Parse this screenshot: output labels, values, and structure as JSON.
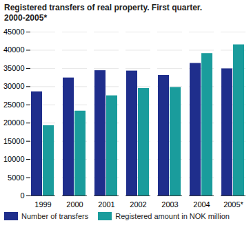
{
  "chart_data": {
    "type": "bar",
    "title": "Registered transfers of real property.  First quarter. 2000-2005*",
    "categories": [
      "1999",
      "2000",
      "2001",
      "2002",
      "2003",
      "2004",
      "2005*"
    ],
    "series": [
      {
        "name": "Number of transfers",
        "color": "#1f2e8c",
        "values": [
          28600,
          32400,
          34400,
          34300,
          33100,
          36400,
          34900
        ]
      },
      {
        "name": "Registered amount in NOK million",
        "color": "#1a9c9c",
        "values": [
          19300,
          23300,
          27500,
          29500,
          29800,
          39100,
          41500
        ]
      }
    ],
    "ylim": [
      0,
      45000
    ],
    "yticks": [
      0,
      5000,
      10000,
      15000,
      20000,
      25000,
      30000,
      35000,
      40000,
      45000
    ],
    "grid": true,
    "legend": "bottom"
  }
}
